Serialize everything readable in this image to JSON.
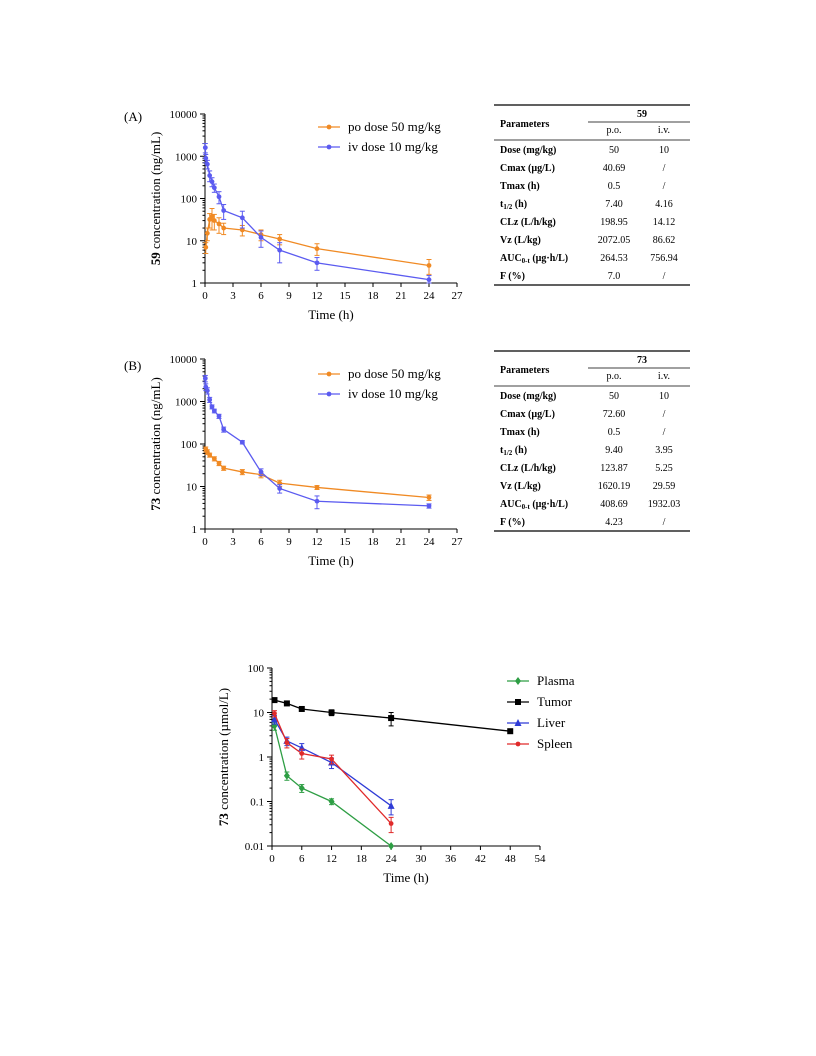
{
  "figures": [
    {
      "panel_label": "(A)",
      "table": {
        "col_header": "Parameters",
        "compound": "59",
        "sub_headers": [
          "p.o.",
          "i.v."
        ],
        "rows": [
          {
            "param": "Dose (mg/kg)",
            "po": "50",
            "iv": "10"
          },
          {
            "param": "Cmax (µg/L)",
            "po": "40.69",
            "iv": "/"
          },
          {
            "param": "Tmax (h)",
            "po": "0.5",
            "iv": "/"
          },
          {
            "param": "t",
            "sub": "1/2",
            "tail": " (h)",
            "po": "7.40",
            "iv": "4.16"
          },
          {
            "param": "CLz (L/h/kg)",
            "po": "198.95",
            "iv": "14.12"
          },
          {
            "param": "Vz (L/kg)",
            "po": "2072.05",
            "iv": "86.62"
          },
          {
            "param": "AUC",
            "sub": "0-t",
            "tail": " (µg·h/L)",
            "po": "264.53",
            "iv": "756.94"
          },
          {
            "param": "F (%)",
            "po": "7.0",
            "iv": "/"
          }
        ]
      }
    },
    {
      "panel_label": "(B)",
      "table": {
        "col_header": "Parameters",
        "compound": "73",
        "sub_headers": [
          "p.o.",
          "i.v."
        ],
        "rows": [
          {
            "param": "Dose (mg/kg)",
            "po": "50",
            "iv": "10"
          },
          {
            "param": "Cmax (µg/L)",
            "po": "72.60",
            "iv": "/"
          },
          {
            "param": "Tmax (h)",
            "po": "0.5",
            "iv": "/"
          },
          {
            "param": "t",
            "sub": "1/2",
            "tail": " (h)",
            "po": "9.40",
            "iv": "3.95"
          },
          {
            "param": "CLz (L/h/kg)",
            "po": "123.87",
            "iv": "5.25"
          },
          {
            "param": "Vz (L/kg)",
            "po": "1620.19",
            "iv": "29.59"
          },
          {
            "param": "AUC",
            "sub": "0-t",
            "tail": " (µg·h/L)",
            "po": "408.69",
            "iv": "1932.03"
          },
          {
            "param": "F (%)",
            "po": "4.23",
            "iv": "/"
          }
        ]
      }
    }
  ],
  "chart_data": [
    {
      "type": "line",
      "ylabel_bold": "59",
      "ylabel_rest": " concentration (ng/mL)",
      "xlabel": "Time (h)",
      "yscale": "log",
      "ylim": [
        1,
        10000
      ],
      "xlim": [
        0,
        27
      ],
      "xticks": [
        0,
        3,
        6,
        9,
        12,
        15,
        18,
        21,
        24,
        27
      ],
      "yticks": [
        1,
        10,
        100,
        1000,
        10000
      ],
      "ytick_labels": [
        "1",
        "10",
        "100",
        "1000",
        "10000"
      ],
      "legend_position": "top-right",
      "series": [
        {
          "name": "po dose 50 mg/kg",
          "color": "#f08a24",
          "marker": "circle",
          "x": [
            0.083,
            0.25,
            0.5,
            0.75,
            1,
            1.5,
            2,
            4,
            6,
            8,
            12,
            24
          ],
          "y": [
            7,
            15,
            32,
            38,
            30,
            25,
            20,
            18,
            14,
            11,
            6.5,
            2.6
          ],
          "err": [
            2,
            5,
            12,
            20,
            12,
            10,
            6,
            5,
            4,
            3,
            2,
            1
          ]
        },
        {
          "name": "iv dose 10 mg/kg",
          "color": "#5b5bf0",
          "marker": "circle",
          "x": [
            0.033,
            0.083,
            0.25,
            0.5,
            0.75,
            1,
            1.5,
            2,
            4,
            6,
            8,
            12,
            24
          ],
          "y": [
            1600,
            900,
            650,
            350,
            250,
            180,
            110,
            52,
            35,
            12,
            6,
            3,
            1.2
          ],
          "err": [
            400,
            200,
            150,
            100,
            60,
            40,
            35,
            20,
            15,
            5,
            3,
            1,
            0.3
          ]
        }
      ]
    },
    {
      "type": "line",
      "ylabel_bold": "73",
      "ylabel_rest": " concentration (ng/mL)",
      "xlabel": "Time (h)",
      "yscale": "log",
      "ylim": [
        1,
        10000
      ],
      "xlim": [
        0,
        27
      ],
      "xticks": [
        0,
        3,
        6,
        9,
        12,
        15,
        18,
        21,
        24,
        27
      ],
      "yticks": [
        1,
        10,
        100,
        1000,
        10000
      ],
      "ytick_labels": [
        "1",
        "10",
        "100",
        "1000",
        "10000"
      ],
      "legend_position": "top-right",
      "series": [
        {
          "name": "po dose 50 mg/kg",
          "color": "#f08a24",
          "marker": "circle",
          "x": [
            0.083,
            0.25,
            0.5,
            1,
            1.5,
            2,
            4,
            6,
            8,
            12,
            24
          ],
          "y": [
            75,
            65,
            55,
            45,
            35,
            27,
            22,
            19,
            12,
            9.5,
            5.5
          ],
          "err": [
            10,
            8,
            6,
            5,
            4,
            3,
            3,
            3,
            2,
            1,
            0.8
          ]
        },
        {
          "name": "iv dose 10 mg/kg",
          "color": "#5b5bf0",
          "marker": "circle",
          "x": [
            0.033,
            0.083,
            0.25,
            0.5,
            0.75,
            1,
            1.5,
            2,
            4,
            6,
            8,
            12,
            24
          ],
          "y": [
            3500,
            2200,
            1800,
            1100,
            750,
            600,
            450,
            220,
            110,
            22,
            9,
            4.5,
            3.5
          ],
          "err": [
            600,
            400,
            300,
            150,
            80,
            60,
            50,
            30,
            10,
            4,
            2,
            1.5,
            0.4
          ]
        }
      ]
    },
    {
      "type": "line",
      "ylabel_bold": "73",
      "ylabel_rest": " concentration (µmol/L)",
      "xlabel": "Time (h)",
      "yscale": "log",
      "ylim": [
        0.01,
        100
      ],
      "xlim": [
        0,
        54
      ],
      "xticks": [
        0,
        6,
        12,
        18,
        24,
        30,
        36,
        42,
        48,
        54
      ],
      "yticks": [
        0.01,
        0.1,
        1,
        10,
        100
      ],
      "ytick_labels": [
        "0.01",
        "0.1",
        "1",
        "10",
        "100"
      ],
      "legend_position": "top-right",
      "series": [
        {
          "name": "Plasma",
          "color": "#2e9e44",
          "marker": "diamond",
          "x": [
            0.5,
            3,
            6,
            12,
            24
          ],
          "y": [
            5,
            0.38,
            0.2,
            0.1,
            0.01
          ],
          "err": [
            1,
            0.08,
            0.04,
            0.015,
            0
          ]
        },
        {
          "name": "Tumor",
          "color": "#000000",
          "marker": "square",
          "x": [
            0.5,
            3,
            6,
            12,
            24,
            48
          ],
          "y": [
            19,
            16,
            12,
            10,
            7.5,
            3.8
          ],
          "err": [
            2,
            1.5,
            1,
            1.5,
            2.5,
            0.3
          ]
        },
        {
          "name": "Liver",
          "color": "#2f3bd6",
          "marker": "triangle",
          "x": [
            0.5,
            3,
            6,
            12,
            24
          ],
          "y": [
            7,
            2.3,
            1.6,
            0.75,
            0.08
          ],
          "err": [
            1.5,
            0.5,
            0.4,
            0.2,
            0.03
          ]
        },
        {
          "name": "Spleen",
          "color": "#e02a2a",
          "marker": "circle",
          "x": [
            0.5,
            3,
            6,
            12,
            24
          ],
          "y": [
            9.5,
            2.1,
            1.2,
            0.9,
            0.032
          ],
          "err": [
            1.5,
            0.5,
            0.3,
            0.2,
            0.012
          ]
        }
      ]
    }
  ]
}
